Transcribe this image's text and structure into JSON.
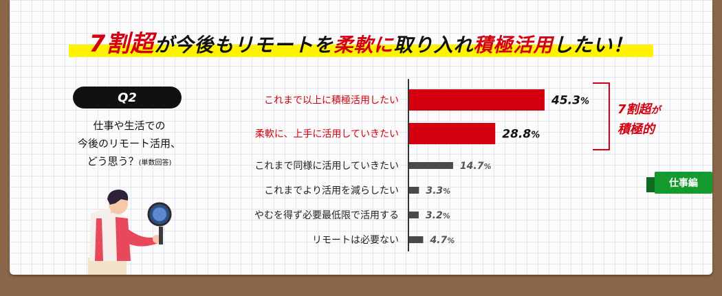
{
  "headline": {
    "part1": "7割超",
    "part2": "が今後もリモートを",
    "part3": "柔軟に",
    "part4": "取り入れ",
    "part5": "積極活用",
    "part6": "したい！"
  },
  "question": {
    "badge": "Q2",
    "line1": "仕事や生活での",
    "line2": "今後のリモート活用、",
    "line3": "どう思う？",
    "note": "(単数回答)"
  },
  "bracket": {
    "big": "7割超",
    "small": "が",
    "line2": "積極的"
  },
  "tag": "仕事編",
  "colors": {
    "highlight": "#d4000f",
    "normal": "#4a4a4a",
    "marker": "#fff200",
    "tag": "#159a2f"
  },
  "chart_data": {
    "type": "bar",
    "orientation": "horizontal",
    "categories": [
      "これまで以上に積極活用したい",
      "柔軟に、上手に活用していきたい",
      "これまで同様に活用していきたい",
      "これまでより活用を減らしたい",
      "やむを得ず必要最低限で活用する",
      "リモートは必要ない"
    ],
    "values": [
      45.3,
      28.8,
      14.7,
      3.3,
      3.2,
      4.7
    ],
    "value_labels": [
      "45.3",
      "28.8",
      "14.7",
      "3.3",
      "3.2",
      "4.7"
    ],
    "unit": "%",
    "highlighted": [
      true,
      true,
      false,
      false,
      false,
      false
    ]
  }
}
